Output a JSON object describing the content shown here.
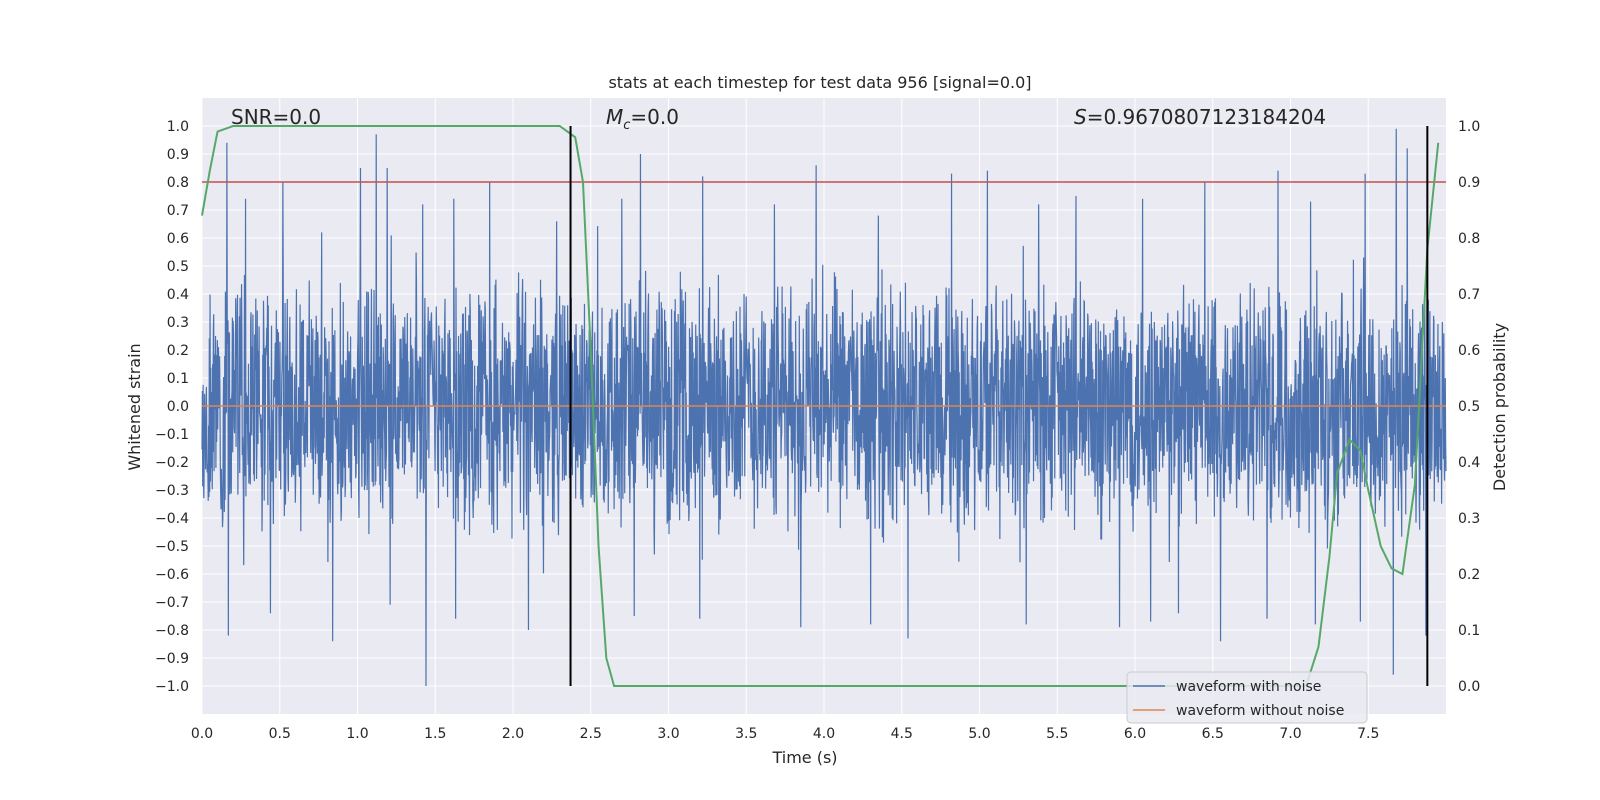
{
  "chart_data": {
    "type": "line",
    "title": "stats at each timestep for test data 956 [signal=0.0]",
    "xlabel": "Time (s)",
    "ylabel": "Whitened strain",
    "ylabel_right": "Detection probability",
    "xlim": [
      0.0,
      8.0
    ],
    "ylim": [
      -1.1,
      1.1
    ],
    "ylim_right": [
      -0.05,
      1.05
    ],
    "x_ticks": [
      "0.0",
      "0.5",
      "1.0",
      "1.5",
      "2.0",
      "2.5",
      "3.0",
      "3.5",
      "4.0",
      "4.5",
      "5.0",
      "5.5",
      "6.0",
      "6.5",
      "7.0",
      "7.5"
    ],
    "y_ticks": [
      "1.0",
      "0.9",
      "0.8",
      "0.7",
      "0.6",
      "0.5",
      "0.4",
      "0.3",
      "0.2",
      "0.1",
      "0.0",
      "−0.1",
      "−0.2",
      "−0.3",
      "−0.4",
      "−0.5",
      "−0.6",
      "−0.7",
      "−0.8",
      "−0.9",
      "−1.0"
    ],
    "y_ticks_right": [
      "1.0",
      "0.9",
      "0.8",
      "0.7",
      "0.6",
      "0.5",
      "0.4",
      "0.3",
      "0.2",
      "0.1",
      "0.0"
    ],
    "grid": true,
    "annotations": {
      "snr": "SNR=0.0",
      "mc_symbol": "M",
      "mc_sub": "c",
      "mc_value": "=0.0",
      "s_symbol": "S",
      "s_value": "=0.9670807123184204"
    },
    "legend": {
      "placement": "bottom-right",
      "entries": [
        "waveform with noise",
        "waveform without noise"
      ]
    },
    "colors": {
      "noise": "#4c72b0",
      "clean": "#dd8452",
      "probability": "#55a868",
      "threshold": "#c44e52",
      "markers": "#000000",
      "plot_bg": "#eaeaf2",
      "grid": "#ffffff"
    },
    "series": [
      {
        "name": "waveform with noise",
        "kind": "noise",
        "duration": 8.0,
        "typical_amplitude": 0.42,
        "peaks": [
          [
            0.16,
            0.94
          ],
          [
            0.28,
            0.74
          ],
          [
            0.52,
            0.8
          ],
          [
            0.77,
            0.62
          ],
          [
            1.02,
            0.85
          ],
          [
            1.12,
            0.97
          ],
          [
            1.19,
            0.85
          ],
          [
            1.42,
            0.72
          ],
          [
            1.62,
            0.74
          ],
          [
            1.85,
            0.8
          ],
          [
            2.28,
            0.66
          ],
          [
            2.7,
            0.74
          ],
          [
            2.82,
            0.9
          ],
          [
            3.22,
            0.82
          ],
          [
            3.68,
            0.72
          ],
          [
            3.95,
            0.86
          ],
          [
            4.35,
            0.68
          ],
          [
            4.82,
            0.83
          ],
          [
            5.05,
            0.84
          ],
          [
            5.38,
            0.72
          ],
          [
            5.62,
            0.75
          ],
          [
            6.05,
            0.74
          ],
          [
            6.28,
            0.79
          ],
          [
            6.45,
            0.8
          ],
          [
            6.92,
            0.84
          ],
          [
            7.13,
            0.73
          ],
          [
            7.48,
            0.83
          ],
          [
            7.68,
            0.99
          ],
          [
            7.75,
            0.92
          ]
        ],
        "troughs": [
          [
            0.17,
            -0.82
          ],
          [
            0.44,
            -0.74
          ],
          [
            0.84,
            -0.84
          ],
          [
            1.21,
            -0.71
          ],
          [
            1.44,
            -1.0
          ],
          [
            1.63,
            -0.76
          ],
          [
            2.1,
            -0.8
          ],
          [
            2.78,
            -0.75
          ],
          [
            3.2,
            -0.76
          ],
          [
            3.85,
            -0.79
          ],
          [
            4.3,
            -0.78
          ],
          [
            4.54,
            -0.83
          ],
          [
            5.3,
            -0.78
          ],
          [
            5.9,
            -0.79
          ],
          [
            6.1,
            -0.77
          ],
          [
            6.28,
            -0.74
          ],
          [
            6.55,
            -0.84
          ],
          [
            6.85,
            -0.76
          ],
          [
            7.16,
            -0.78
          ],
          [
            7.45,
            -0.77
          ],
          [
            7.66,
            -0.96
          ],
          [
            7.87,
            -0.82
          ]
        ]
      },
      {
        "name": "waveform without noise",
        "kind": "clean",
        "x": [
          0.0,
          8.0
        ],
        "y": [
          0.0,
          0.0
        ]
      },
      {
        "name": "detection probability",
        "axis": "right",
        "x": [
          0.0,
          0.05,
          0.1,
          0.2,
          0.5,
          1.0,
          1.5,
          2.0,
          2.2,
          2.3,
          2.35,
          2.4,
          2.45,
          2.5,
          2.55,
          2.6,
          2.65,
          2.7,
          2.8,
          3.0,
          4.0,
          5.0,
          6.0,
          7.0,
          7.1,
          7.18,
          7.25,
          7.3,
          7.38,
          7.45,
          7.5,
          7.58,
          7.65,
          7.72,
          7.8,
          7.88,
          7.95
        ],
        "y": [
          0.84,
          0.92,
          0.99,
          1.0,
          1.0,
          1.0,
          1.0,
          1.0,
          1.0,
          1.0,
          0.99,
          0.98,
          0.9,
          0.6,
          0.25,
          0.05,
          0.0,
          0.0,
          0.0,
          0.0,
          0.0,
          0.0,
          0.0,
          0.0,
          0.0,
          0.07,
          0.23,
          0.38,
          0.44,
          0.42,
          0.35,
          0.25,
          0.21,
          0.2,
          0.36,
          0.78,
          0.97
        ]
      },
      {
        "name": "threshold",
        "axis": "right",
        "x": [
          0.0,
          8.0
        ],
        "y": [
          0.9,
          0.9
        ]
      },
      {
        "name": "event markers",
        "kind": "vlines",
        "x": [
          2.37,
          7.88
        ],
        "y_range": [
          -1.0,
          1.0
        ]
      }
    ]
  }
}
